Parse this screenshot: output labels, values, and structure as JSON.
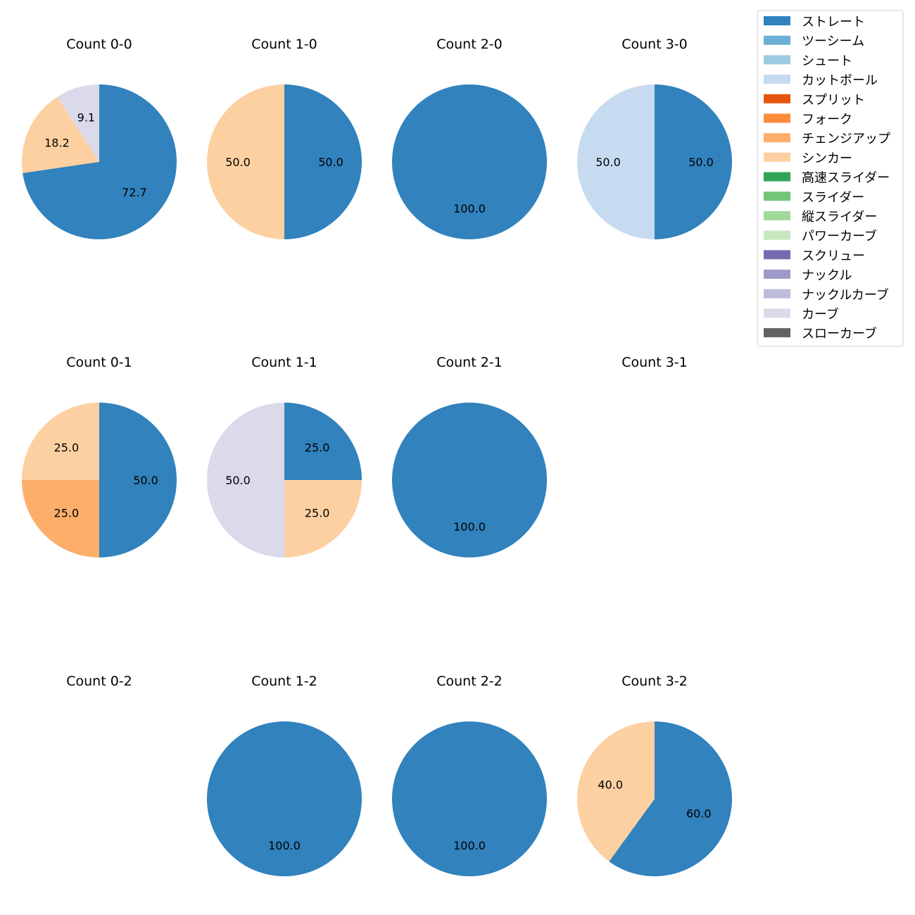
{
  "chart_data": {
    "type": "pie",
    "legend": {
      "placement": "top-right",
      "entries": [
        {
          "label": "ストレート",
          "color": "#3182bd"
        },
        {
          "label": "ツーシーム",
          "color": "#6baed6"
        },
        {
          "label": "シュート",
          "color": "#9ecae1"
        },
        {
          "label": "カットボール",
          "color": "#c6dbef"
        },
        {
          "label": "スプリット",
          "color": "#e6550d"
        },
        {
          "label": "フォーク",
          "color": "#fd8d3c"
        },
        {
          "label": "チェンジアップ",
          "color": "#fdae6b"
        },
        {
          "label": "シンカー",
          "color": "#fdd0a2"
        },
        {
          "label": "高速スライダー",
          "color": "#31a354"
        },
        {
          "label": "スライダー",
          "color": "#74c476"
        },
        {
          "label": "縦スライダー",
          "color": "#a1d99b"
        },
        {
          "label": "パワーカーブ",
          "color": "#c7e9c0"
        },
        {
          "label": "スクリュー",
          "color": "#756bb1"
        },
        {
          "label": "ナックル",
          "color": "#9e9ac8"
        },
        {
          "label": "ナックルカーブ",
          "color": "#bcbddc"
        },
        {
          "label": "カーブ",
          "color": "#dadaeb"
        },
        {
          "label": "スローカーブ",
          "color": "#636363"
        }
      ]
    },
    "charts": [
      {
        "title": "Count 0-0",
        "slices": [
          {
            "pitch": "ストレート",
            "value": 72.7,
            "label": "72.7"
          },
          {
            "pitch": "シンカー",
            "value": 18.2,
            "label": "18.2"
          },
          {
            "pitch": "カーブ",
            "value": 9.1,
            "label": "9.1"
          }
        ]
      },
      {
        "title": "Count 1-0",
        "slices": [
          {
            "pitch": "ストレート",
            "value": 50.0,
            "label": "50.0"
          },
          {
            "pitch": "シンカー",
            "value": 50.0,
            "label": "50.0"
          }
        ]
      },
      {
        "title": "Count 2-0",
        "slices": [
          {
            "pitch": "ストレート",
            "value": 100.0,
            "label": "100.0"
          }
        ]
      },
      {
        "title": "Count 3-0",
        "slices": [
          {
            "pitch": "ストレート",
            "value": 50.0,
            "label": "50.0"
          },
          {
            "pitch": "カットボール",
            "value": 50.0,
            "label": "50.0"
          }
        ]
      },
      {
        "title": "Count 0-1",
        "slices": [
          {
            "pitch": "ストレート",
            "value": 50.0,
            "label": "50.0"
          },
          {
            "pitch": "チェンジアップ",
            "value": 25.0,
            "label": "25.0"
          },
          {
            "pitch": "シンカー",
            "value": 25.0,
            "label": "25.0"
          }
        ]
      },
      {
        "title": "Count 1-1",
        "slices": [
          {
            "pitch": "ストレート",
            "value": 25.0,
            "label": "25.0"
          },
          {
            "pitch": "シンカー",
            "value": 25.0,
            "label": "25.0"
          },
          {
            "pitch": "カーブ",
            "value": 50.0,
            "label": "50.0"
          }
        ]
      },
      {
        "title": "Count 2-1",
        "slices": [
          {
            "pitch": "ストレート",
            "value": 100.0,
            "label": "100.0"
          }
        ]
      },
      {
        "title": "Count 3-1",
        "slices": []
      },
      {
        "title": "Count 0-2",
        "slices": []
      },
      {
        "title": "Count 1-2",
        "slices": [
          {
            "pitch": "ストレート",
            "value": 100.0,
            "label": "100.0"
          }
        ]
      },
      {
        "title": "Count 2-2",
        "slices": [
          {
            "pitch": "ストレート",
            "value": 100.0,
            "label": "100.0"
          }
        ]
      },
      {
        "title": "Count 3-2",
        "slices": [
          {
            "pitch": "ストレート",
            "value": 60.0,
            "label": "60.0"
          },
          {
            "pitch": "シンカー",
            "value": 40.0,
            "label": "40.0"
          }
        ]
      }
    ]
  }
}
